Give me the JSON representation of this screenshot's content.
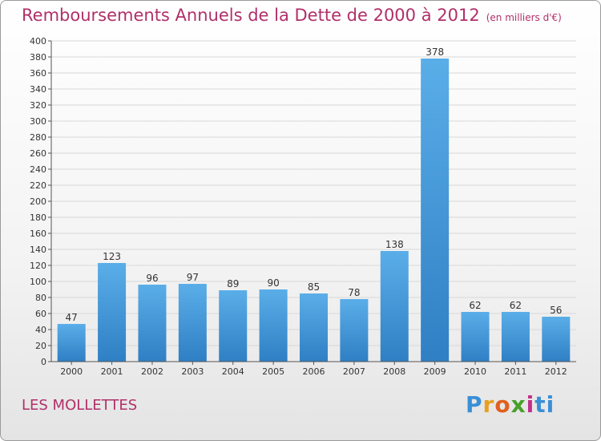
{
  "title": "Remboursements Annuels de la Dette de 2000 à 2012",
  "unit": "(en milliers d'€)",
  "place": "LES MOLLETTES",
  "logo": {
    "letters": [
      "P",
      "r",
      "o",
      "x",
      "i",
      "ti"
    ]
  },
  "colors": {
    "title": "#b0306a",
    "bar_top": "#5aaee8",
    "bar_bottom": "#2f7fc4",
    "grid": "#d8d8d8"
  },
  "chart_data": {
    "type": "bar",
    "categories": [
      "2000",
      "2001",
      "2002",
      "2003",
      "2004",
      "2005",
      "2006",
      "2007",
      "2008",
      "2009",
      "2010",
      "2011",
      "2012"
    ],
    "values": [
      47,
      123,
      96,
      97,
      89,
      90,
      85,
      78,
      138,
      378,
      62,
      62,
      56
    ],
    "ylim": [
      0,
      400
    ],
    "yticks": [
      0,
      20,
      40,
      60,
      80,
      100,
      120,
      140,
      160,
      180,
      200,
      220,
      240,
      260,
      280,
      300,
      320,
      340,
      360,
      380,
      400
    ],
    "grid": true
  }
}
